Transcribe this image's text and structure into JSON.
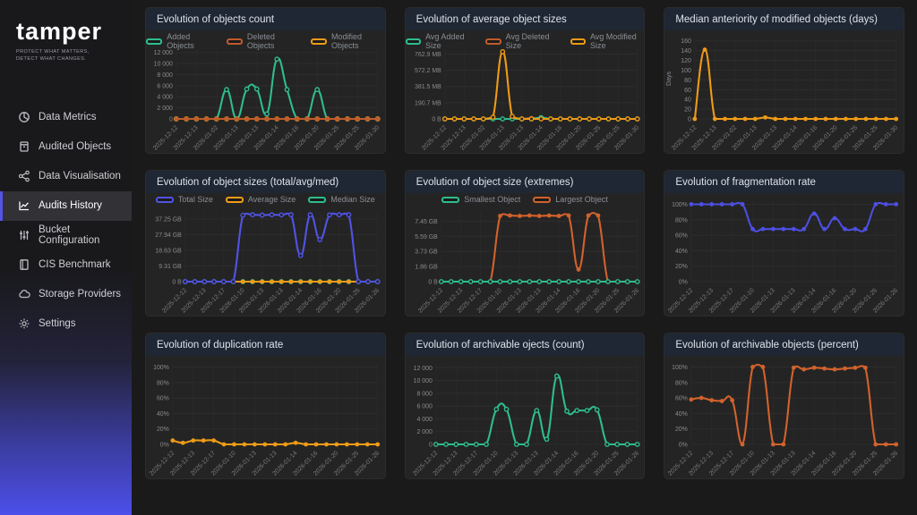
{
  "brand": {
    "logo": "tamper",
    "tagline1": "PROTECT WHAT MATTERS,",
    "tagline2": "DETECT WHAT CHANGES."
  },
  "sidebar": {
    "items": [
      {
        "label": "Data Metrics",
        "icon": "pie-chart-icon",
        "active": false
      },
      {
        "label": "Audited Objects",
        "icon": "archive-icon",
        "active": false
      },
      {
        "label": "Data Visualisation",
        "icon": "share-nodes-icon",
        "active": false
      },
      {
        "label": "Audits History",
        "icon": "line-chart-icon",
        "active": true
      },
      {
        "label": "Bucket Configuration",
        "icon": "sliders-icon",
        "active": false
      },
      {
        "label": "CIS Benchmark",
        "icon": "book-icon",
        "active": false
      },
      {
        "label": "Storage Providers",
        "icon": "cloud-icon",
        "active": false
      },
      {
        "label": "Settings",
        "icon": "gear-icon",
        "active": false
      }
    ]
  },
  "theme": {
    "accent": "#4c4fe9",
    "page_bg": "#1a1a1b",
    "card_bg": "#242424",
    "header_bg": "#1e2733",
    "green": "#2ebd8f",
    "amber": "#ef9b17",
    "rust": "#c05b2b",
    "orange": "#d2622c",
    "indigo": "#5153e6"
  },
  "chart_data": [
    {
      "type": "line",
      "title": "Evolution of objects count",
      "legend_position": "top",
      "grid": true,
      "mleft": 34,
      "ylim": [
        0,
        12600
      ],
      "yticks": [
        0,
        2000,
        4000,
        6000,
        8000,
        10000,
        12000
      ],
      "ytick_labels": [
        "0",
        "2 000",
        "4 000",
        "6 000",
        "8 000",
        "10 000",
        "12 000"
      ],
      "x_labels": [
        "2025-12-12",
        "2025-12-13",
        "2026-01-02",
        "2026-01-13",
        "2026-01-13",
        "2026-01-14",
        "2026-01-16",
        "2026-01-20",
        "2026-01-25",
        "2026-01-25",
        "2026-01-30"
      ],
      "draw_order": [
        0,
        2,
        1
      ],
      "series": [
        {
          "name": "Added Objects",
          "color": "#2ebd8f",
          "dot": "ring",
          "values": [
            0,
            0,
            0,
            0,
            0,
            5300,
            0,
            5400,
            5400,
            900,
            10800,
            5300,
            0,
            0,
            5300,
            0,
            0,
            0,
            0,
            0,
            0
          ]
        },
        {
          "name": "Deleted Objects",
          "color": "#c05b2b",
          "dot": "solid",
          "values": [
            0,
            0,
            0,
            0,
            0,
            0,
            0,
            0,
            0,
            0,
            0,
            0,
            0,
            0,
            0,
            0,
            0,
            0,
            0,
            0,
            0
          ]
        },
        {
          "name": "Modified Objects",
          "color": "#ef9b17",
          "dot": "ring",
          "values": [
            0,
            0,
            0,
            0,
            0,
            0,
            0,
            0,
            0,
            0,
            0,
            0,
            0,
            0,
            0,
            0,
            0,
            0,
            0,
            0,
            0
          ]
        }
      ]
    },
    {
      "type": "line",
      "title": "Evolution of average object sizes",
      "legend_position": "top",
      "grid": true,
      "mleft": 44,
      "ylim": [
        0,
        820
      ],
      "yticks": [
        0,
        190.7,
        381.5,
        572.2,
        762.9
      ],
      "ytick_labels": [
        "0 B",
        "190.7 MB",
        "381.5 MB",
        "572.2 MB",
        "762.9 MB"
      ],
      "x_labels": [
        "2025-12-12",
        "2025-12-13",
        "2026-01-02",
        "2026-01-13",
        "2026-01-13",
        "2026-01-14",
        "2026-01-16",
        "2026-01-20",
        "2026-01-25",
        "2026-01-25",
        "2026-01-30"
      ],
      "draw_order": [
        1,
        0,
        2
      ],
      "series": [
        {
          "name": "Avg Added Size",
          "color": "#2ebd8f",
          "dot": "ring",
          "values": [
            0,
            0,
            0,
            0,
            0,
            0,
            0,
            0,
            0,
            0,
            15,
            0,
            0,
            0,
            0,
            0,
            0,
            0,
            0,
            0,
            0
          ]
        },
        {
          "name": "Avg Deleted Size",
          "color": "#c05b2b",
          "dot": "solid",
          "values": [
            0,
            0,
            0,
            0,
            0,
            0,
            0,
            0,
            0,
            10,
            5,
            0,
            0,
            0,
            0,
            0,
            0,
            0,
            0,
            0,
            0
          ]
        },
        {
          "name": "Avg Modified Size",
          "color": "#ef9b17",
          "dot": "ring",
          "values": [
            0,
            0,
            0,
            0,
            0,
            20,
            790,
            30,
            0,
            0,
            0,
            0,
            0,
            0,
            0,
            0,
            0,
            0,
            0,
            0,
            0
          ]
        }
      ]
    },
    {
      "type": "line",
      "title": "Median anteriority of modified objects (days)",
      "legend_position": "none",
      "grid": true,
      "mleft": 34,
      "ylabel": "Days",
      "ylim": [
        0,
        165
      ],
      "yticks": [
        0,
        20,
        40,
        60,
        80,
        100,
        120,
        140,
        160
      ],
      "ytick_labels": [
        "0",
        "20",
        "40",
        "60",
        "80",
        "100",
        "120",
        "140",
        "160"
      ],
      "x_labels": [
        "2025-12-12",
        "2025-12-13",
        "2026-01-02",
        "2026-01-13",
        "2026-01-13",
        "2026-01-14",
        "2026-01-16",
        "2026-01-20",
        "2026-01-25",
        "2026-01-25",
        "2026-01-30"
      ],
      "draw_order": [
        0
      ],
      "series": [
        {
          "name": "Median anteriority",
          "color": "#ef9b17",
          "dot": "solid",
          "values": [
            0,
            142,
            0,
            0,
            0,
            0,
            0,
            3,
            0,
            0,
            0,
            0,
            0,
            0,
            0,
            0,
            0,
            0,
            0,
            0,
            0
          ]
        }
      ]
    },
    {
      "type": "line",
      "title": "Evolution of object sizes (total/avg/med)",
      "legend_position": "top",
      "grid": true,
      "mleft": 44,
      "ylim": [
        0,
        41.5
      ],
      "yticks": [
        0,
        9.31,
        18.63,
        27.94,
        37.25
      ],
      "ytick_labels": [
        "0 B",
        "9.31 GB",
        "18.63 GB",
        "27.94 GB",
        "37.25 GB"
      ],
      "x_labels": [
        "2025-12-12",
        "2025-12-13",
        "2025-12-17",
        "2026-01-10",
        "2026-01-13",
        "2026-01-13",
        "2026-01-14",
        "2026-01-16",
        "2026-01-20",
        "2026-01-25",
        "2026-01-26"
      ],
      "draw_order": [
        2,
        1,
        0
      ],
      "series": [
        {
          "name": "Total Size",
          "color": "#5153e6",
          "dot": "ring",
          "values": [
            0,
            0,
            0,
            0,
            0,
            0,
            39.5,
            39.8,
            39.6,
            39.8,
            39.7,
            39.8,
            15.5,
            39.8,
            25,
            39.7,
            39.8,
            39.8,
            0,
            0,
            0
          ]
        },
        {
          "name": "Average Size",
          "color": "#ef9b17",
          "dot": "solid",
          "values": [
            0,
            0,
            0,
            0,
            0,
            0,
            0,
            0,
            0,
            0,
            0,
            0,
            0,
            0,
            0,
            0,
            0,
            0,
            0,
            0,
            0
          ]
        },
        {
          "name": "Median Size",
          "color": "#2ebd8f",
          "dot": "ring",
          "values": [
            0,
            0,
            0,
            0,
            0,
            0,
            0,
            0,
            0,
            0,
            0,
            0,
            0,
            0,
            0,
            0,
            0,
            0,
            0,
            0,
            0
          ]
        }
      ]
    },
    {
      "type": "line",
      "title": "Evolution of object size (extremes)",
      "legend_position": "top",
      "grid": true,
      "mleft": 40,
      "ylim": [
        0,
        8.6
      ],
      "yticks": [
        0,
        1.86,
        3.73,
        5.59,
        7.45
      ],
      "ytick_labels": [
        "0 B",
        "1.86 GB",
        "3.73 GB",
        "5.59 GB",
        "7.45 GB"
      ],
      "x_labels": [
        "2025-12-12",
        "2025-12-13",
        "2025-12-17",
        "2026-01-10",
        "2026-01-13",
        "2026-01-13",
        "2026-01-14",
        "2026-01-16",
        "2026-01-20",
        "2026-01-25",
        "2026-01-26"
      ],
      "draw_order": [
        1,
        0
      ],
      "series": [
        {
          "name": "Smallest Object",
          "color": "#2ebd8f",
          "dot": "ring",
          "values": [
            0,
            0,
            0,
            0,
            0,
            0,
            0,
            0,
            0,
            0,
            0,
            0,
            0,
            0,
            0,
            0,
            0,
            0,
            0,
            0,
            0
          ]
        },
        {
          "name": "Largest Object",
          "color": "#d2622c",
          "dot": "solid",
          "values": [
            0,
            0,
            0,
            0,
            0,
            0,
            8.1,
            8.15,
            8.1,
            8.15,
            8.1,
            8.15,
            8.1,
            8.15,
            1.5,
            8.15,
            8.15,
            0,
            0,
            0,
            0
          ]
        }
      ]
    },
    {
      "type": "line",
      "title": "Evolution of fragmentation rate",
      "legend_position": "none",
      "grid": true,
      "mleft": 30,
      "ylim": [
        0,
        104
      ],
      "yticks": [
        0,
        20,
        40,
        60,
        80,
        100
      ],
      "ytick_labels": [
        "0%",
        "20%",
        "40%",
        "60%",
        "80%",
        "100%"
      ],
      "x_labels": [
        "2025-12-12",
        "2025-12-13",
        "2025-12-17",
        "2026-01-10",
        "2026-01-13",
        "2026-01-13",
        "2026-01-14",
        "2026-01-16",
        "2026-01-20",
        "2026-01-25",
        "2026-01-26"
      ],
      "draw_order": [
        0
      ],
      "series": [
        {
          "name": "Fragmentation rate",
          "color": "#4d4fe2",
          "dot": "solid",
          "values": [
            100,
            100,
            100,
            100,
            100,
            100,
            68,
            68,
            68,
            68,
            68,
            68,
            88,
            68,
            82,
            68,
            68,
            68,
            100,
            100,
            100
          ]
        }
      ]
    },
    {
      "type": "line",
      "title": "Evolution of duplication rate",
      "legend_position": "none",
      "grid": true,
      "mleft": 30,
      "ylim": [
        0,
        104
      ],
      "yticks": [
        0,
        20,
        40,
        60,
        80,
        100
      ],
      "ytick_labels": [
        "0%",
        "20%",
        "40%",
        "60%",
        "80%",
        "100%"
      ],
      "x_labels": [
        "2025-12-12",
        "2025-12-13",
        "2025-12-17",
        "2026-01-10",
        "2026-01-13",
        "2026-01-13",
        "2026-01-14",
        "2026-01-16",
        "2026-01-20",
        "2026-01-25",
        "2026-01-26"
      ],
      "draw_order": [
        0
      ],
      "series": [
        {
          "name": "Duplication rate",
          "color": "#ef9b17",
          "dot": "solid",
          "values": [
            5,
            2,
            5,
            5,
            5,
            0,
            0,
            0,
            0,
            0,
            0,
            0,
            2,
            0,
            0,
            0,
            0,
            0,
            0,
            0,
            0
          ]
        }
      ]
    },
    {
      "type": "line",
      "title": "Evolution of archivable ojects (count)",
      "legend_position": "none",
      "grid": true,
      "mleft": 34,
      "ylim": [
        0,
        12600
      ],
      "yticks": [
        0,
        2000,
        4000,
        6000,
        8000,
        10000,
        12000
      ],
      "ytick_labels": [
        "0",
        "2 000",
        "4 000",
        "6 000",
        "8 000",
        "10 000",
        "12 000"
      ],
      "x_labels": [
        "2025-12-12",
        "2025-12-13",
        "2025-12-17",
        "2026-01-10",
        "2026-01-13",
        "2026-01-13",
        "2026-01-14",
        "2026-01-16",
        "2026-01-20",
        "2026-01-25",
        "2026-01-26"
      ],
      "draw_order": [
        0
      ],
      "series": [
        {
          "name": "Archivable objects",
          "color": "#2ebd8f",
          "dot": "ring",
          "values": [
            0,
            0,
            0,
            0,
            0,
            0,
            5500,
            5500,
            0,
            0,
            5300,
            800,
            10700,
            5200,
            5300,
            5300,
            5400,
            0,
            0,
            0,
            0
          ]
        }
      ]
    },
    {
      "type": "line",
      "title": "Evolution of archivable objects (percent)",
      "legend_position": "none",
      "grid": true,
      "mleft": 30,
      "ylim": [
        0,
        104
      ],
      "yticks": [
        0,
        20,
        40,
        60,
        80,
        100
      ],
      "ytick_labels": [
        "0%",
        "20%",
        "40%",
        "60%",
        "80%",
        "100%"
      ],
      "x_labels": [
        "2025-12-12",
        "2025-12-13",
        "2025-12-17",
        "2026-01-10",
        "2026-01-13",
        "2026-01-13",
        "2026-01-14",
        "2026-01-16",
        "2026-01-20",
        "2026-01-25",
        "2026-01-26"
      ],
      "draw_order": [
        0
      ],
      "series": [
        {
          "name": "Archivable percent",
          "color": "#d2622c",
          "dot": "solid",
          "values": [
            58,
            60,
            57,
            56,
            57,
            0,
            100,
            100,
            0,
            0,
            99,
            97,
            99,
            98,
            97,
            98,
            99,
            99,
            0,
            0,
            0
          ]
        }
      ]
    }
  ]
}
